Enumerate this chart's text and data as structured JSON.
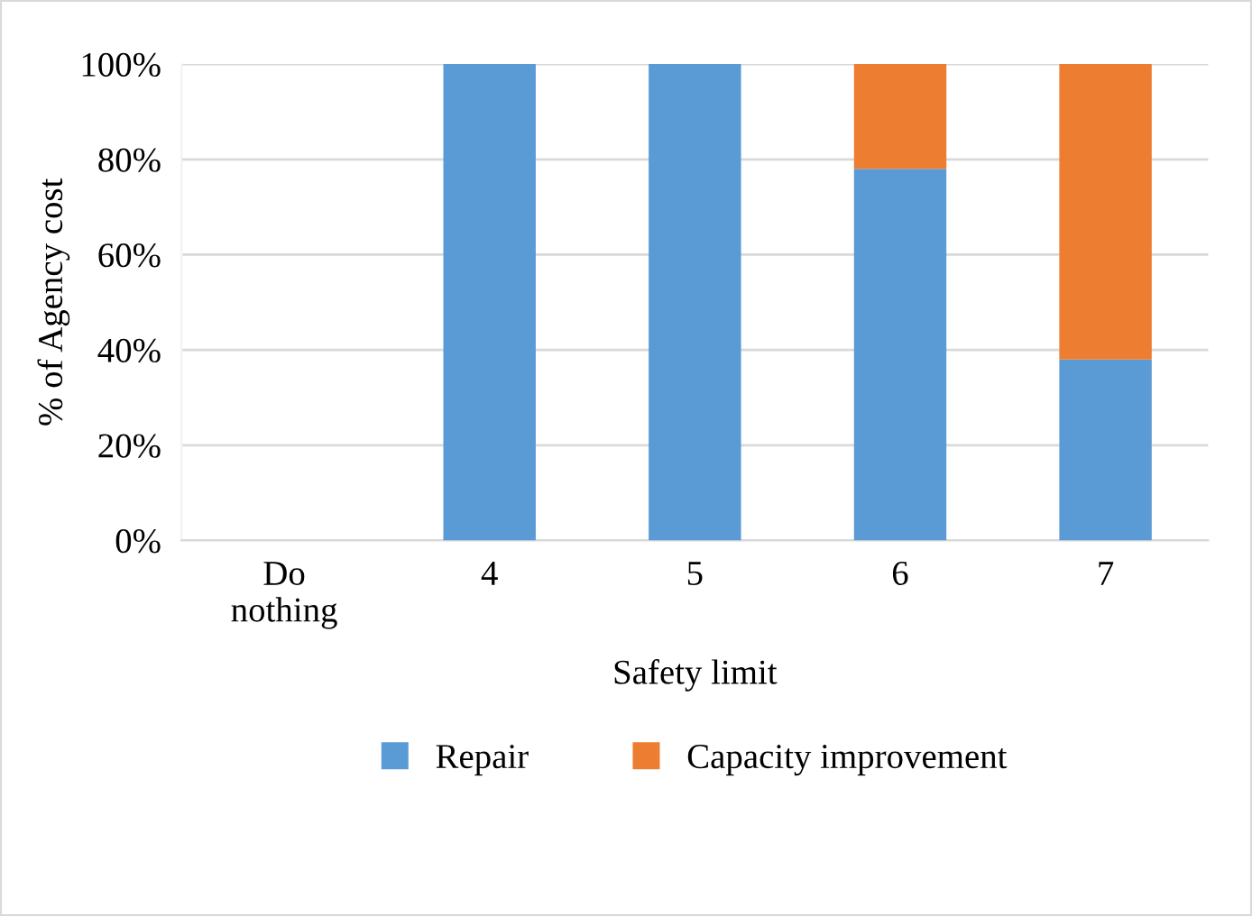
{
  "chart_data": {
    "type": "bar",
    "stacked": true,
    "xlabel": "Safety limit",
    "ylabel": "% of Agency cost",
    "categories": [
      "Do nothing",
      "4",
      "5",
      "6",
      "7"
    ],
    "series": [
      {
        "name": "Repair",
        "color": "#5b9bd5",
        "values": [
          0,
          100,
          100,
          78,
          38
        ]
      },
      {
        "name": "Capacity improvement",
        "color": "#ed7d31",
        "values": [
          0,
          0,
          0,
          22,
          62
        ]
      }
    ],
    "ylim": [
      0,
      100
    ],
    "yticks": [
      {
        "value": 0,
        "label": "0%"
      },
      {
        "value": 20,
        "label": "20%"
      },
      {
        "value": 40,
        "label": "40%"
      },
      {
        "value": 60,
        "label": "60%"
      },
      {
        "value": 80,
        "label": "80%"
      },
      {
        "value": 100,
        "label": "100%"
      }
    ],
    "grid": "y",
    "legend": "bottom"
  }
}
